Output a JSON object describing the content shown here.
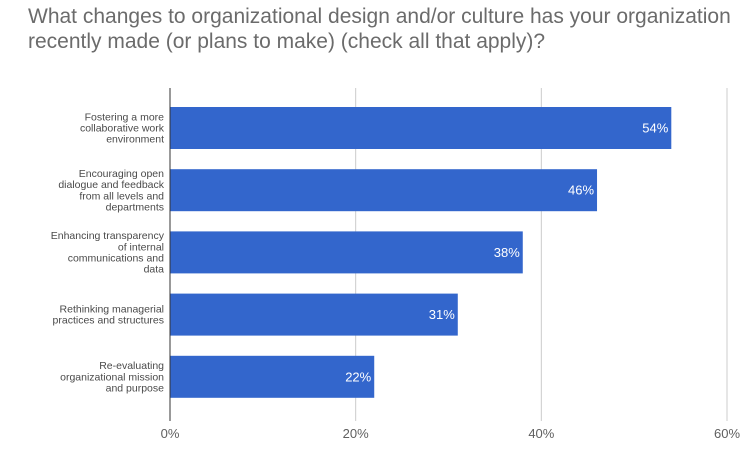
{
  "chart_data": {
    "type": "bar",
    "orientation": "horizontal",
    "title": "What changes to organizational design and/or culture has your organization recently made (or plans to make) (check all that apply)?",
    "categories": [
      [
        "Fostering a more",
        "collaborative work",
        "environment"
      ],
      [
        "Encouraging open",
        "dialogue and feedback",
        "from all levels and",
        "departments"
      ],
      [
        "Enhancing transparency",
        "of internal",
        "communications and",
        "data"
      ],
      [
        "Rethinking managerial",
        "practices and structures"
      ],
      [
        "Re-evaluating",
        "organizational mission",
        "and purpose"
      ]
    ],
    "values": [
      54,
      46,
      38,
      31,
      22
    ],
    "data_labels": [
      "54%",
      "46%",
      "38%",
      "31%",
      "22%"
    ],
    "xlim": [
      0,
      60
    ],
    "xticks": [
      0,
      20,
      40,
      60
    ],
    "xtick_labels": [
      "0%",
      "20%",
      "40%",
      "60%"
    ],
    "grid": true,
    "bar_color": "#3366cc",
    "grid_color": "#cccccc",
    "axis_color": "#333333"
  }
}
